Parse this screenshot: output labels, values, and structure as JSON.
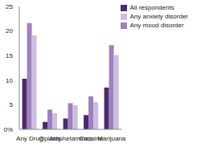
{
  "chart_data": {
    "type": "bar",
    "categories": [
      "Any Drug",
      "Opioids",
      "Amphetamines",
      "Cocaine",
      "Marijuana"
    ],
    "series": [
      {
        "name": "All respondents",
        "color": "#4a2a6c",
        "values": [
          10.3,
          1.5,
          2.2,
          2.9,
          8.5
        ]
      },
      {
        "name": "Any mood disorder",
        "color": "#9e80c0",
        "values": [
          21.6,
          4.0,
          5.3,
          6.7,
          17.1
        ]
      },
      {
        "name": "Any anxiety disorder",
        "color": "#cdbddf",
        "values": [
          19.1,
          3.3,
          4.9,
          5.5,
          15.1
        ]
      }
    ],
    "ylim": [
      0,
      25
    ],
    "yticks": [
      {
        "value": 0,
        "label": "0%"
      },
      5,
      10,
      15,
      20,
      25
    ],
    "grid": false,
    "legend": "top-right"
  }
}
